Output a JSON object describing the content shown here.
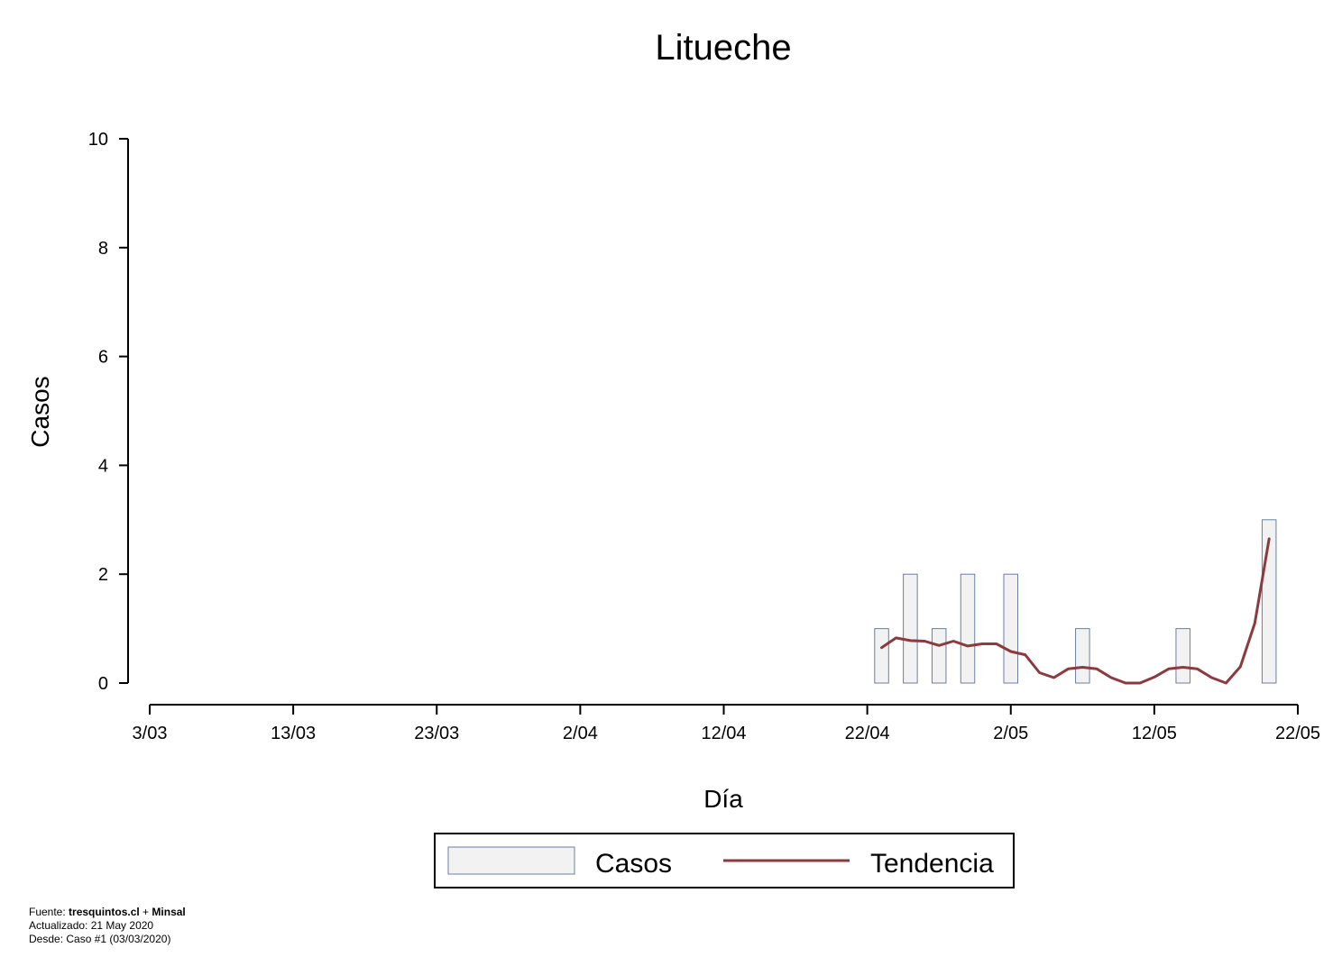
{
  "footer": {
    "source_prefix": "Fuente: ",
    "source_site": "tresquintos.cl",
    "source_sep": " + ",
    "source_org": "Minsal",
    "updated": "Actualizado: 21 May 2020",
    "since": "Desde: Caso #1  (03/03/2020)"
  },
  "colors": {
    "bar_fill": "#f2f2f2",
    "bar_stroke": "#6b7fa3",
    "line": "#8b3a3f"
  },
  "chart_data": {
    "type": "bar",
    "title": "Litueche",
    "xlabel": "Día",
    "ylabel": "Casos",
    "ylim": [
      0,
      10
    ],
    "yticks": [
      0,
      2,
      4,
      6,
      8,
      10
    ],
    "x_start": "3/03",
    "xticks": [
      {
        "day": 0,
        "label": "3/03"
      },
      {
        "day": 10,
        "label": "13/03"
      },
      {
        "day": 20,
        "label": "23/03"
      },
      {
        "day": 30,
        "label": "2/04"
      },
      {
        "day": 40,
        "label": "12/04"
      },
      {
        "day": 50,
        "label": "22/04"
      },
      {
        "day": 60,
        "label": "2/05"
      },
      {
        "day": 70,
        "label": "12/05"
      },
      {
        "day": 80,
        "label": "22/05"
      }
    ],
    "legend": {
      "placement": "bottom",
      "entries": [
        "Casos",
        "Tendencia"
      ]
    },
    "grid": false,
    "series": [
      {
        "name": "Casos",
        "type": "bar",
        "points": [
          {
            "day": 51,
            "value": 1
          },
          {
            "day": 53,
            "value": 2
          },
          {
            "day": 55,
            "value": 1
          },
          {
            "day": 57,
            "value": 2
          },
          {
            "day": 60,
            "value": 2
          },
          {
            "day": 65,
            "value": 1
          },
          {
            "day": 72,
            "value": 1
          },
          {
            "day": 78,
            "value": 3
          }
        ]
      },
      {
        "name": "Tendencia",
        "type": "line",
        "points": [
          {
            "day": 51,
            "value": 0.65
          },
          {
            "day": 52,
            "value": 0.83
          },
          {
            "day": 53,
            "value": 0.78
          },
          {
            "day": 54,
            "value": 0.77
          },
          {
            "day": 55,
            "value": 0.69
          },
          {
            "day": 56,
            "value": 0.77
          },
          {
            "day": 57,
            "value": 0.68
          },
          {
            "day": 58,
            "value": 0.72
          },
          {
            "day": 59,
            "value": 0.72
          },
          {
            "day": 60,
            "value": 0.58
          },
          {
            "day": 61,
            "value": 0.52
          },
          {
            "day": 62,
            "value": 0.19
          },
          {
            "day": 63,
            "value": 0.1
          },
          {
            "day": 64,
            "value": 0.26
          },
          {
            "day": 65,
            "value": 0.29
          },
          {
            "day": 66,
            "value": 0.26
          },
          {
            "day": 67,
            "value": 0.1
          },
          {
            "day": 68,
            "value": 0.0
          },
          {
            "day": 69,
            "value": 0.0
          },
          {
            "day": 70,
            "value": 0.11
          },
          {
            "day": 71,
            "value": 0.26
          },
          {
            "day": 72,
            "value": 0.29
          },
          {
            "day": 73,
            "value": 0.26
          },
          {
            "day": 74,
            "value": 0.1
          },
          {
            "day": 75,
            "value": 0.0
          },
          {
            "day": 76,
            "value": 0.3
          },
          {
            "day": 77,
            "value": 1.1
          },
          {
            "day": 78,
            "value": 2.65
          }
        ]
      }
    ]
  }
}
